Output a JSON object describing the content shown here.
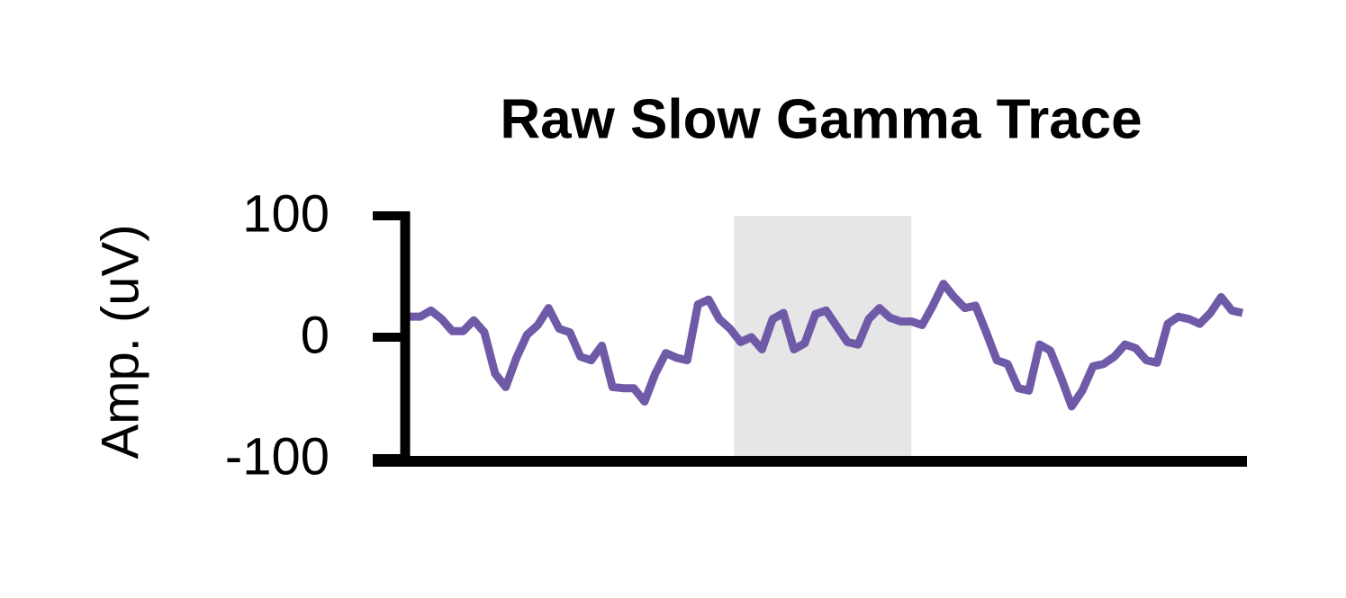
{
  "chart_data": {
    "type": "line",
    "title": "Raw Slow Gamma Trace",
    "ylabel": "Amp. (uV)",
    "ylim": [
      -100,
      100
    ],
    "yticks": [
      -100,
      0,
      100
    ],
    "highlight": {
      "start": 30.4,
      "end": 47,
      "color": "#e6e6e6"
    },
    "series": [
      {
        "color": "#6f5aa8",
        "values": [
          17,
          17,
          22,
          15,
          5,
          5,
          14,
          4,
          -30,
          -41,
          -17,
          2,
          10,
          24,
          7,
          4,
          -16,
          -19,
          -7,
          -41,
          -42,
          -42,
          -53,
          -30,
          -13,
          -17,
          -19,
          27,
          31,
          15,
          7,
          -4,
          0,
          -10,
          15,
          20,
          -10,
          -5,
          19,
          22,
          9,
          -4,
          -6,
          15,
          24,
          16,
          13,
          13,
          10,
          26,
          44,
          33,
          24,
          26,
          4,
          -19,
          -22,
          -42,
          -44,
          -6,
          -11,
          -33,
          -57,
          -44,
          -24,
          -22,
          -16,
          -6,
          -9,
          -19,
          -21,
          11,
          17,
          15,
          11,
          20,
          33,
          22,
          20
        ]
      }
    ]
  }
}
